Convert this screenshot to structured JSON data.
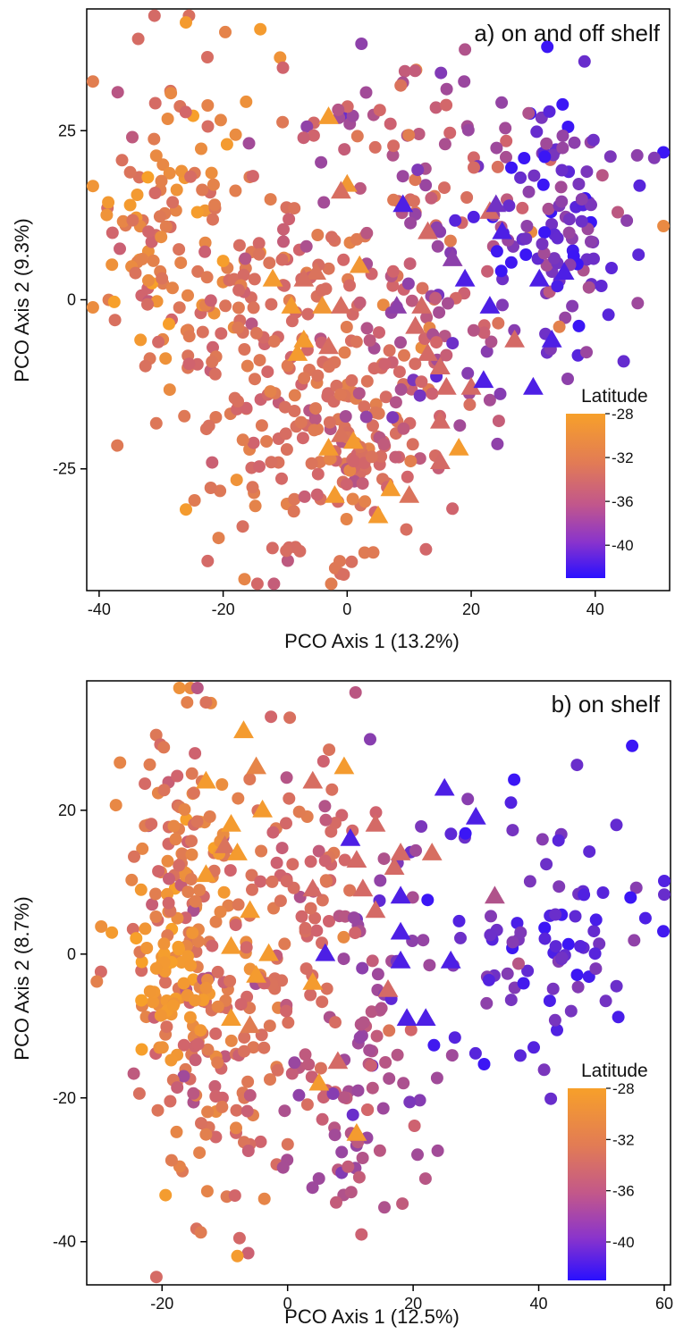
{
  "colors": {
    "north": "#f7a02a",
    "mid": "#d0636e",
    "south": "#3b16f5"
  },
  "chart_data": [
    {
      "type": "scatter",
      "title": "a) on and off shelf",
      "xlabel": "PCO Axis 1 (13.2%)",
      "ylabel": "PCO Axis 2 (9.3%)",
      "xlim": [
        -42,
        52
      ],
      "ylim": [
        -43,
        43
      ],
      "xticks": [
        -40,
        -20,
        0,
        20,
        40
      ],
      "yticks": [
        -25,
        0,
        25
      ],
      "grid": false,
      "legend": {
        "title": "Latitude",
        "placement": "bottom-right",
        "range": [
          -43,
          -28
        ],
        "ticks": [
          -28,
          -32,
          -36,
          -40
        ]
      },
      "seed": 11,
      "series": [
        {
          "marker": "circle",
          "clusters": [
            {
              "n": 130,
              "cx": -27,
              "cy": 10,
              "sx": 7,
              "sy": 13,
              "lat_mean": -31.5,
              "lat_sd": 2.3
            },
            {
              "n": 190,
              "cx": -10,
              "cy": -10,
              "sx": 9,
              "sy": 13,
              "lat_mean": -33.2,
              "lat_sd": 1.3
            },
            {
              "n": 90,
              "cx": 3,
              "cy": -23,
              "sx": 5,
              "sy": 8,
              "lat_mean": -33.4,
              "lat_sd": 1.3
            },
            {
              "n": 75,
              "cx": 8,
              "cy": 22,
              "sx": 10,
              "sy": 7,
              "lat_mean": -35.5,
              "lat_sd": 2.2
            },
            {
              "n": 70,
              "cx": 14,
              "cy": -8,
              "sx": 6,
              "sy": 9,
              "lat_mean": -36.0,
              "lat_sd": 2.0
            },
            {
              "n": 120,
              "cx": 35,
              "cy": 12,
              "sx": 7,
              "sy": 10,
              "lat_mean": -40.0,
              "lat_sd": 2.3
            }
          ],
          "points": [
            [
              -26,
              41,
              -28.5
            ],
            [
              -14,
              40,
              -28.5
            ],
            [
              19,
              37,
              -36.5
            ],
            [
              -35,
              14,
              -28.5
            ],
            [
              -26,
              -31,
              -28.5
            ]
          ]
        },
        {
          "marker": "triangle",
          "points": [
            [
              -3,
              27,
              -28.5
            ],
            [
              0,
              17,
              -29
            ],
            [
              -1,
              16,
              -33.5
            ],
            [
              -12,
              3,
              -28.5
            ],
            [
              -5,
              4,
              -33
            ],
            [
              2,
              5,
              -29
            ],
            [
              -9,
              -1,
              -28.5
            ],
            [
              -4,
              -1,
              -29
            ],
            [
              -1,
              -1,
              -33.5
            ],
            [
              -7,
              -6,
              -28.5
            ],
            [
              -3,
              -7,
              -33.5
            ],
            [
              -8,
              -8,
              -28.5
            ],
            [
              -1,
              -20,
              -33
            ],
            [
              1,
              -21,
              -28.5
            ],
            [
              -3,
              -22,
              -28.5
            ],
            [
              -2,
              -29,
              -28.5
            ],
            [
              7,
              -28,
              -28.5
            ],
            [
              5,
              -32,
              -28.5
            ],
            [
              10,
              -29,
              -33
            ],
            [
              8,
              -1,
              -38.5
            ],
            [
              12,
              -1,
              -34
            ],
            [
              11,
              -4,
              -34
            ],
            [
              13,
              -8,
              -34
            ],
            [
              15,
              -10,
              -34
            ],
            [
              16,
              -13,
              -34
            ],
            [
              15,
              -18,
              -34
            ],
            [
              20,
              -13,
              -34
            ],
            [
              18,
              -22,
              -28.5
            ],
            [
              15,
              -24,
              -34
            ],
            [
              13,
              10,
              -34
            ],
            [
              17,
              6,
              -38.5
            ],
            [
              23,
              13,
              -34
            ],
            [
              24,
              14,
              -40
            ],
            [
              25,
              10,
              -42
            ],
            [
              9,
              14,
              -42
            ],
            [
              19,
              3,
              -42
            ],
            [
              23,
              -1,
              -42
            ],
            [
              27,
              -6,
              -34
            ],
            [
              31,
              3,
              -42
            ],
            [
              35,
              4,
              -42
            ],
            [
              33,
              -6,
              -42
            ],
            [
              30,
              -13,
              -42
            ],
            [
              22,
              -12,
              -42
            ],
            [
              -7,
              3,
              -33.5
            ]
          ]
        }
      ]
    },
    {
      "type": "scatter",
      "title": "b) on shelf",
      "xlabel": "PCO Axis 1 (12.5%)",
      "ylabel": "PCO Axis 2 (8.7%)",
      "xlim": [
        -32,
        61
      ],
      "ylim": [
        -46,
        38
      ],
      "xticks": [
        -20,
        0,
        20,
        40,
        60
      ],
      "yticks": [
        -40,
        -20,
        0,
        20
      ],
      "grid": false,
      "legend": {
        "title": "Latitude",
        "placement": "bottom-right",
        "range": [
          -43,
          -28
        ],
        "ticks": [
          -28,
          -32,
          -36,
          -40
        ]
      },
      "seed": 23,
      "series": [
        {
          "marker": "circle",
          "clusters": [
            {
              "n": 160,
              "cx": -17,
              "cy": 5,
              "sx": 5,
              "sy": 13,
              "lat_mean": -31.8,
              "lat_sd": 2.0
            },
            {
              "n": 90,
              "cx": -11,
              "cy": -17,
              "sx": 6,
              "sy": 11,
              "lat_mean": -33.0,
              "lat_sd": 1.5
            },
            {
              "n": 80,
              "cx": 2,
              "cy": 8,
              "sx": 5,
              "sy": 12,
              "lat_mean": -34.0,
              "lat_sd": 1.5
            },
            {
              "n": 60,
              "cx": 8,
              "cy": -25,
              "sx": 6,
              "sy": 7,
              "lat_mean": -36.5,
              "lat_sd": 1.5
            },
            {
              "n": 50,
              "cx": 15,
              "cy": -5,
              "sx": 5,
              "sy": 12,
              "lat_mean": -37.5,
              "lat_sd": 1.7
            },
            {
              "n": 90,
              "cx": 40,
              "cy": 3,
              "sx": 8,
              "sy": 10,
              "lat_mean": -41.0,
              "lat_sd": 1.5
            },
            {
              "n": 40,
              "cx": -19,
              "cy": -5,
              "sx": 3,
              "sy": 5,
              "lat_mean": -28.8,
              "lat_sd": 0.6
            }
          ],
          "points": [
            [
              -16,
              35,
              -31.5
            ],
            [
              -13,
              35,
              -33
            ],
            [
              -8,
              -42,
              -28.5
            ],
            [
              -28,
              3,
              -28.5
            ],
            [
              57,
              5,
              -42
            ]
          ]
        },
        {
          "marker": "triangle",
          "points": [
            [
              -7,
              31,
              -28.5
            ],
            [
              -13,
              24,
              -28.5
            ],
            [
              -5,
              26,
              -31
            ],
            [
              -4,
              20,
              -28.5
            ],
            [
              -9,
              18,
              -28.5
            ],
            [
              -10,
              15,
              -33
            ],
            [
              -8,
              14,
              -28.5
            ],
            [
              -13,
              11,
              -28.5
            ],
            [
              -6,
              6,
              -28.5
            ],
            [
              -9,
              1,
              -28.5
            ],
            [
              -5,
              -3,
              -28.5
            ],
            [
              -3,
              0,
              -28.5
            ],
            [
              -9,
              -9,
              -28.5
            ],
            [
              -6,
              -10,
              -32
            ],
            [
              4,
              24,
              -33.5
            ],
            [
              9,
              26,
              -28.5
            ],
            [
              10,
              16,
              -42
            ],
            [
              14,
              18,
              -34
            ],
            [
              4,
              9,
              -34
            ],
            [
              11,
              13,
              -34
            ],
            [
              12,
              9,
              -34
            ],
            [
              14,
              6,
              -34
            ],
            [
              17,
              12,
              -34
            ],
            [
              18,
              14,
              -34
            ],
            [
              23,
              14,
              -33.5
            ],
            [
              18,
              8,
              -42
            ],
            [
              18,
              3,
              -42
            ],
            [
              18,
              -1,
              -42
            ],
            [
              6,
              0,
              -42
            ],
            [
              4,
              -4,
              -28.5
            ],
            [
              16,
              -5,
              -34
            ],
            [
              19,
              -9,
              -42
            ],
            [
              22,
              -9,
              -42
            ],
            [
              26,
              -1,
              -42
            ],
            [
              25,
              23,
              -42
            ],
            [
              30,
              19,
              -42
            ],
            [
              33,
              8,
              -36.5
            ],
            [
              8,
              -15,
              -34
            ],
            [
              5,
              -18,
              -28.5
            ],
            [
              11,
              -25,
              -28.5
            ]
          ]
        }
      ]
    }
  ]
}
